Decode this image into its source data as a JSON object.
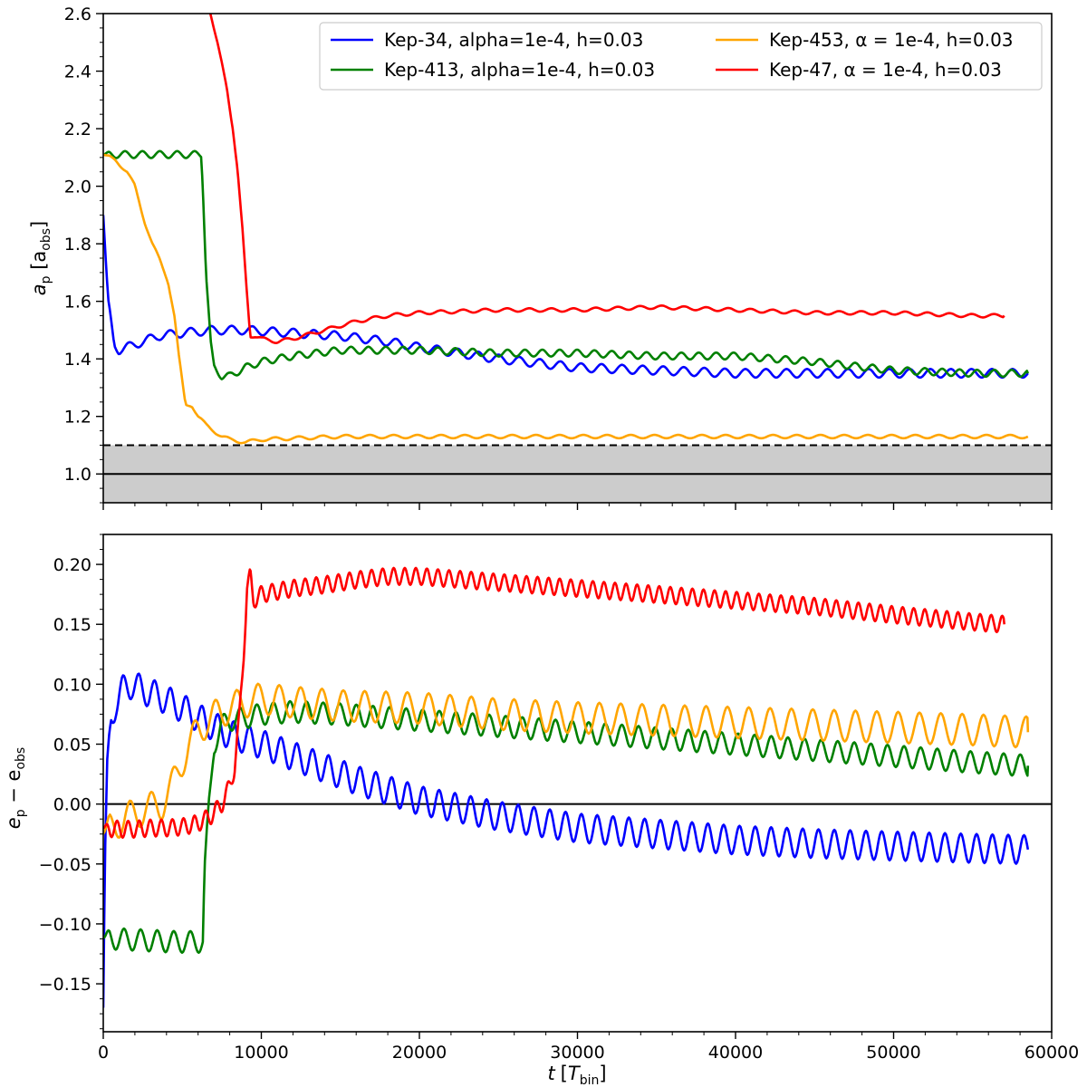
{
  "chart_data": {
    "type": "line",
    "x_axis": {
      "label_main": "t",
      "label_unit_open": "[",
      "label_unit_var": "T",
      "label_unit_sub": "bin",
      "label_unit_close": "]",
      "range": [
        0,
        60000
      ],
      "ticks": [
        "0",
        "10000",
        "20000",
        "30000",
        "40000",
        "50000",
        "60000"
      ]
    },
    "series_meta": [
      {
        "key": "kep34",
        "name": "Kep-34, alpha=1e-4, h=0.03",
        "color": "#0000ff"
      },
      {
        "key": "kep413",
        "name": "Kep-413, alpha=1e-4, h=0.03",
        "color": "#008000"
      },
      {
        "key": "kep453",
        "name": "Kep-453, α = 1e-4, h=0.03",
        "color": "#ffa500"
      },
      {
        "key": "kep47",
        "name": "Kep-47,  α = 1e-4, h=0.03",
        "color": "#ff0000"
      }
    ],
    "panels": [
      {
        "id": "top",
        "ylabel_main": "a",
        "ylabel_sub": "p",
        "ylabel_open": " [a",
        "ylabel_sub2": "obs",
        "ylabel_close": "]",
        "ylim": [
          0.9,
          2.6
        ],
        "yticks": [
          "1.0",
          "1.2",
          "1.4",
          "1.6",
          "1.8",
          "2.0",
          "2.2",
          "2.4",
          "2.6"
        ],
        "shaded_band": [
          0.9,
          1.1
        ],
        "hlines": [
          {
            "y": 1.0,
            "style": "solid"
          },
          {
            "y": 1.1,
            "style": "dashed"
          }
        ],
        "series": [
          {
            "key": "kep34",
            "osc_amp": 0.015,
            "osc_period": 1300,
            "x": [
              0,
              300,
              700,
              1000,
              1500,
              2500,
              3500,
              5000,
              7000,
              9000,
              12000,
              15000,
              18000,
              20000,
              25000,
              30000,
              35000,
              40000,
              45000,
              50000,
              55000,
              58500
            ],
            "y": [
              1.9,
              1.6,
              1.45,
              1.43,
              1.44,
              1.46,
              1.48,
              1.49,
              1.5,
              1.5,
              1.49,
              1.48,
              1.46,
              1.44,
              1.4,
              1.37,
              1.36,
              1.35,
              1.35,
              1.35,
              1.35,
              1.35
            ]
          },
          {
            "key": "kep413",
            "osc_amp": 0.012,
            "osc_period": 1100,
            "x": [
              0,
              6200,
              6300,
              6500,
              6800,
              7000,
              7500,
              8000,
              9000,
              10000,
              12000,
              15000,
              18000,
              20000,
              25000,
              30000,
              35000,
              40000,
              45000,
              50000,
              55000,
              58500
            ],
            "y": [
              2.11,
              2.11,
              2.0,
              1.7,
              1.45,
              1.37,
              1.34,
              1.34,
              1.37,
              1.39,
              1.41,
              1.43,
              1.43,
              1.43,
              1.42,
              1.42,
              1.41,
              1.41,
              1.39,
              1.36,
              1.35,
              1.35
            ]
          },
          {
            "key": "kep453",
            "osc_amp": 0.006,
            "osc_period": 1500,
            "x": [
              0,
              800,
              1500,
              2000,
              2600,
              3100,
              3600,
              4100,
              4500,
              4800,
              5200,
              5600,
              6000,
              6500,
              7000,
              7500,
              8000,
              9000,
              10000,
              15000,
              20000,
              30000,
              40000,
              50000,
              58500
            ],
            "y": [
              2.11,
              2.09,
              2.05,
              2.0,
              1.88,
              1.8,
              1.74,
              1.67,
              1.55,
              1.4,
              1.24,
              1.24,
              1.2,
              1.17,
              1.15,
              1.13,
              1.12,
              1.11,
              1.12,
              1.13,
              1.13,
              1.13,
              1.13,
              1.13,
              1.13
            ]
          },
          {
            "key": "kep47",
            "osc_amp": 0.006,
            "osc_period": 1400,
            "x": [
              6700,
              7200,
              7800,
              8200,
              8500,
              8800,
              9100,
              9300,
              9600,
              10000,
              11000,
              12000,
              14000,
              16000,
              18000,
              20000,
              25000,
              30000,
              35000,
              40000,
              45000,
              50000,
              55000,
              57000
            ],
            "y": [
              2.62,
              2.5,
              2.35,
              2.2,
              2.05,
              1.85,
              1.62,
              1.48,
              1.48,
              1.47,
              1.46,
              1.47,
              1.5,
              1.53,
              1.55,
              1.56,
              1.57,
              1.57,
              1.58,
              1.57,
              1.56,
              1.56,
              1.55,
              1.55
            ]
          }
        ]
      },
      {
        "id": "bottom",
        "ylabel_main": "e",
        "ylabel_sub": "p",
        "ylabel_mid": " − e",
        "ylabel_sub2": "obs",
        "ylim": [
          -0.19,
          0.225
        ],
        "yticks": [
          "−0.15",
          "−0.10",
          "−0.05",
          "0.00",
          "0.05",
          "0.10",
          "0.15",
          "0.20"
        ],
        "hlines": [
          {
            "y": 0.0,
            "style": "solid"
          }
        ],
        "series": [
          {
            "key": "kep34",
            "osc_amp": 0.012,
            "osc_period": 1000,
            "x": [
              0,
              100,
              250,
              500,
              800,
              1200,
              1800,
              2500,
              3500,
              5000,
              6500,
              8000,
              10000,
              13000,
              16000,
              20000,
              25000,
              30000,
              35000,
              40000,
              45000,
              50000,
              55000,
              58500
            ],
            "y": [
              -0.17,
              -0.05,
              0.03,
              0.07,
              0.085,
              0.095,
              0.1,
              0.095,
              0.09,
              0.08,
              0.068,
              0.058,
              0.05,
              0.035,
              0.02,
              0.003,
              -0.01,
              -0.02,
              -0.025,
              -0.03,
              -0.033,
              -0.035,
              -0.037,
              -0.038
            ]
          },
          {
            "key": "kep413",
            "osc_amp": 0.009,
            "osc_period": 1050,
            "x": [
              0,
              1500,
              3000,
              4500,
              6300,
              6400,
              6700,
              7000,
              7500,
              8000,
              9000,
              10000,
              12000,
              15000,
              20000,
              25000,
              30000,
              35000,
              40000,
              45000,
              50000,
              55000,
              58500
            ],
            "y": [
              -0.112,
              -0.113,
              -0.114,
              -0.115,
              -0.115,
              -0.06,
              0.0,
              0.05,
              0.065,
              0.07,
              0.072,
              0.075,
              0.077,
              0.075,
              0.07,
              0.065,
              0.06,
              0.055,
              0.05,
              0.045,
              0.04,
              0.035,
              0.032
            ]
          },
          {
            "key": "kep453",
            "osc_amp": 0.013,
            "osc_period": 1350,
            "x": [
              0,
              1000,
              2000,
              3000,
              3700,
              4200,
              4800,
              5400,
              6000,
              6700,
              7200,
              8000,
              9000,
              10000,
              12000,
              15000,
              20000,
              25000,
              30000,
              35000,
              40000,
              45000,
              50000,
              55000,
              58500
            ],
            "y": [
              -0.025,
              -0.015,
              -0.008,
              -0.003,
              0.0,
              0.01,
              0.03,
              0.048,
              0.062,
              0.07,
              0.075,
              0.08,
              0.085,
              0.088,
              0.085,
              0.082,
              0.08,
              0.075,
              0.072,
              0.07,
              0.068,
              0.066,
              0.064,
              0.062,
              0.06
            ]
          },
          {
            "key": "kep47",
            "osc_amp": 0.007,
            "osc_period": 700,
            "x": [
              0,
              1000,
              2000,
              3000,
              4000,
              5000,
              6000,
              6800,
              7500,
              8000,
              8300,
              8600,
              8900,
              9100,
              9300,
              9500,
              10000,
              12000,
              14000,
              16000,
              18000,
              20000,
              22000,
              25000,
              30000,
              35000,
              40000,
              45000,
              50000,
              55000,
              57000
            ],
            "y": [
              -0.02,
              -0.021,
              -0.021,
              -0.02,
              -0.02,
              -0.019,
              -0.016,
              -0.01,
              0.0,
              0.015,
              0.03,
              0.07,
              0.13,
              0.18,
              0.19,
              0.17,
              0.175,
              0.18,
              0.183,
              0.187,
              0.19,
              0.19,
              0.188,
              0.185,
              0.18,
              0.175,
              0.17,
              0.165,
              0.158,
              0.152,
              0.15
            ]
          }
        ]
      }
    ]
  }
}
